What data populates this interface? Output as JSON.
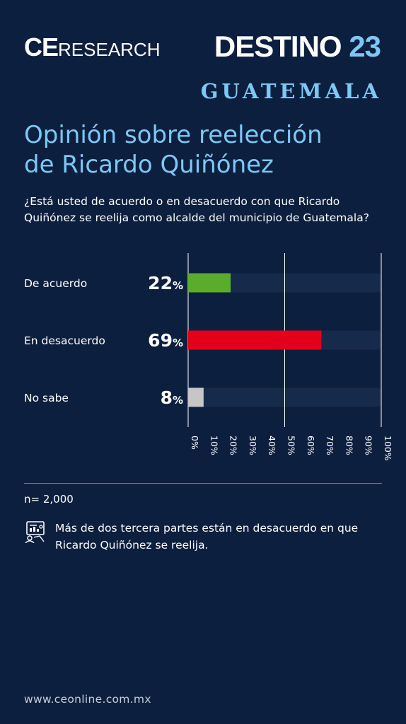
{
  "header": {
    "logo_ce": "CE",
    "logo_research": "RESEARCH",
    "destino_word": "DESTINO",
    "destino_num": "23",
    "region": "GUATEMALA"
  },
  "title_line1": "Opinión sobre reelección",
  "title_line2": "de Ricardo Quiñónez",
  "question": "¿Está usted de acuerdo o en desacuerdo con que Ricardo Quiñónez se reelija como alcalde del municipio de Guatemala?",
  "chart_data": {
    "type": "bar",
    "orientation": "horizontal",
    "categories": [
      "De acuerdo",
      "En desacuerdo",
      "No sabe"
    ],
    "values": [
      22,
      69,
      8
    ],
    "value_labels": [
      "22",
      "69",
      "8"
    ],
    "value_suffix": "%",
    "colors": [
      "#5aac2c",
      "#e3001b",
      "#c6c6c6"
    ],
    "track_color": "#162a4c",
    "xlim": [
      0,
      100
    ],
    "ticks": [
      "0%",
      "10%",
      "20%",
      "30%",
      "40%",
      "50%",
      "60%",
      "70%",
      "80%",
      "90%",
      "100%"
    ],
    "reference_lines": [
      0,
      50,
      100
    ],
    "grid": false,
    "legend": "none"
  },
  "footer": {
    "sample": "n= 2,000",
    "note": "Más de dos tercera partes están en desacuerdo en que Ricardo Quiñónez se reelija.",
    "note_icon": "report-icon",
    "url": "www.ceonline.com.mx"
  }
}
